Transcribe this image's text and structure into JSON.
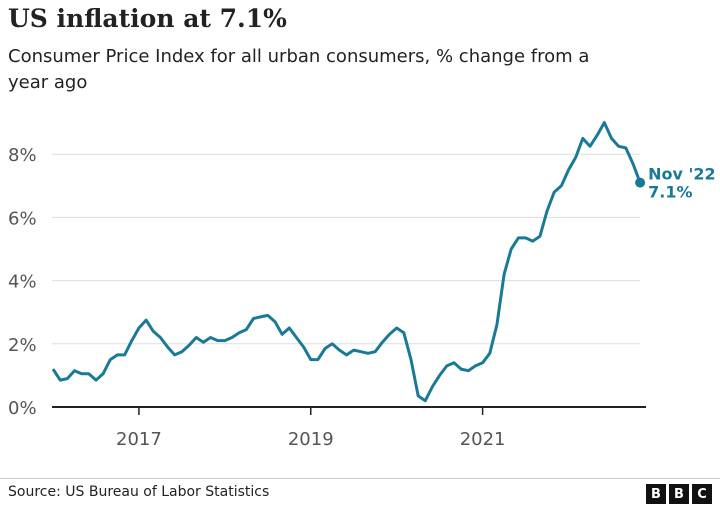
{
  "title": "US inflation at 7.1%",
  "subtitle": "Consumer Price Index for all urban consumers, % change from a year ago",
  "source": "Source: US Bureau of Labor Statistics",
  "logo": [
    "B",
    "B",
    "C"
  ],
  "colors": {
    "line": "#1a7a96",
    "grid": "#dddddd",
    "axis": "#222222"
  },
  "chart_data": {
    "type": "line",
    "title": "US inflation at 7.1%",
    "x_start": "2016-01",
    "x_end": "2022-11",
    "x_frequency": "monthly",
    "x_ticks": [
      "2017",
      "2019",
      "2021"
    ],
    "y_ticks": [
      "0%",
      "2%",
      "4%",
      "6%",
      "8%"
    ],
    "ylim": [
      0,
      9.2
    ],
    "grid": "horizontal",
    "annotation": {
      "label": "Nov '22",
      "value_label": "7.1%",
      "value": 7.1
    },
    "values": [
      1.2,
      0.85,
      0.9,
      1.15,
      1.05,
      1.05,
      0.85,
      1.05,
      1.5,
      1.65,
      1.65,
      2.1,
      2.5,
      2.75,
      2.4,
      2.2,
      1.9,
      1.65,
      1.75,
      1.95,
      2.2,
      2.05,
      2.2,
      2.1,
      2.1,
      2.2,
      2.35,
      2.45,
      2.8,
      2.85,
      2.9,
      2.7,
      2.3,
      2.5,
      2.2,
      1.9,
      1.5,
      1.5,
      1.85,
      2.0,
      1.8,
      1.65,
      1.8,
      1.75,
      1.7,
      1.75,
      2.05,
      2.3,
      2.5,
      2.35,
      1.5,
      0.35,
      0.2,
      0.65,
      1.0,
      1.3,
      1.4,
      1.2,
      1.15,
      1.3,
      1.4,
      1.7,
      2.6,
      4.2,
      5.0,
      5.35,
      5.35,
      5.25,
      5.4,
      6.2,
      6.8,
      7.0,
      7.5,
      7.9,
      8.5,
      8.25,
      8.6,
      9.0,
      8.5,
      8.25,
      8.2,
      7.7,
      7.1
    ]
  }
}
